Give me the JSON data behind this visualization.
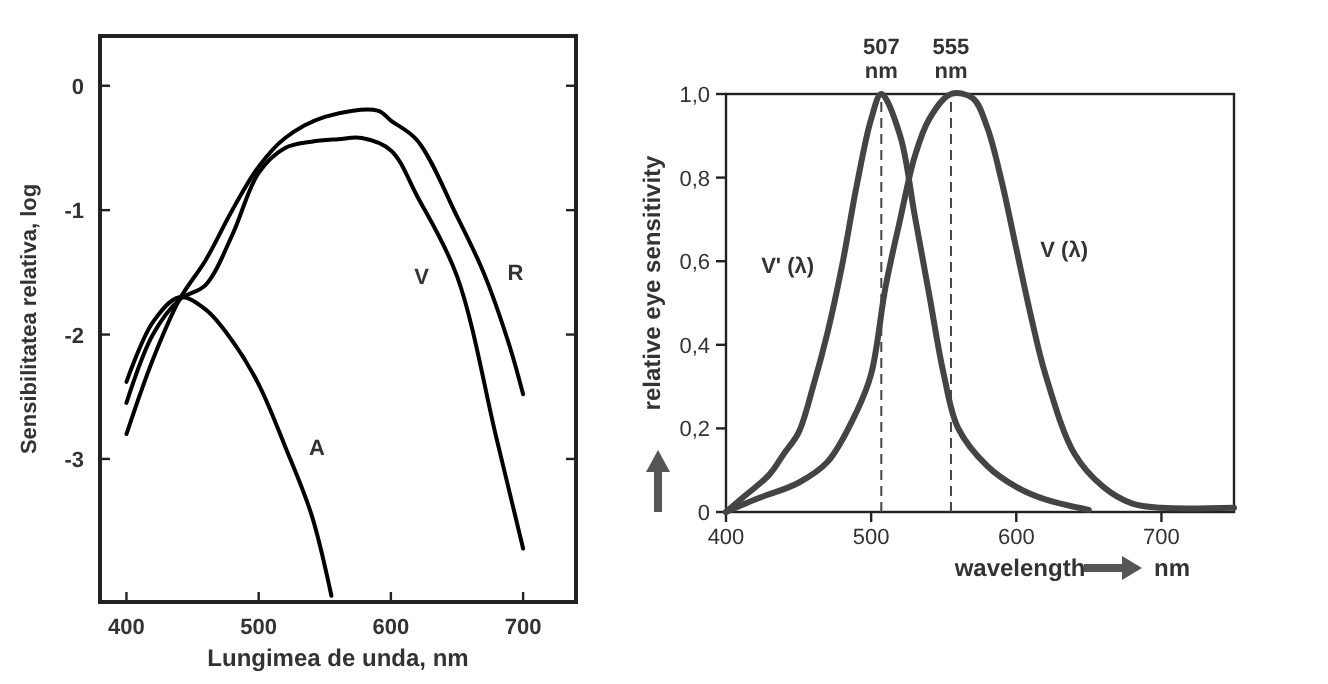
{
  "chart_data": [
    {
      "type": "line",
      "xlabel": "Lungimea de unda, nm",
      "ylabel": "Sensibilitatea relativa, log",
      "xlim": [
        380,
        740
      ],
      "ylim": [
        -4.15,
        0.4
      ],
      "xticks": [
        400,
        500,
        600,
        700
      ],
      "yticks": [
        0,
        -1,
        -2,
        -3
      ],
      "grid": false,
      "legend": false,
      "marker": "none",
      "line_style": "solid",
      "series": [
        {
          "name": "R",
          "color": "#000000",
          "x": [
            400,
            420,
            440,
            460,
            480,
            500,
            520,
            550,
            590,
            600,
            620,
            650,
            670,
            690,
            700
          ],
          "values": [
            -2.8,
            -2.2,
            -1.72,
            -1.4,
            -1.0,
            -0.65,
            -0.42,
            -0.25,
            -0.2,
            -0.28,
            -0.44,
            -1.05,
            -1.5,
            -2.1,
            -2.48
          ]
        },
        {
          "name": "V",
          "color": "#000000",
          "x": [
            400,
            420,
            440,
            460,
            480,
            500,
            520,
            540,
            560,
            578,
            600,
            620,
            650,
            680,
            700
          ],
          "values": [
            -2.55,
            -2.0,
            -1.72,
            -1.6,
            -1.2,
            -0.7,
            -0.5,
            -0.45,
            -0.43,
            -0.42,
            -0.52,
            -0.89,
            -1.53,
            -2.84,
            -3.72
          ]
        },
        {
          "name": "A",
          "color": "#000000",
          "x": [
            400,
            420,
            440,
            460,
            480,
            500,
            520,
            540,
            555
          ],
          "values": [
            -2.38,
            -1.9,
            -1.7,
            -1.8,
            -2.05,
            -2.4,
            -2.9,
            -3.45,
            -4.1
          ]
        }
      ]
    },
    {
      "type": "line",
      "xlabel": "wavelength nm",
      "ylabel": "relative eye sensitivity",
      "xlim": [
        400,
        750
      ],
      "ylim": [
        0,
        1
      ],
      "xticks": [
        400,
        500,
        600,
        700
      ],
      "yticks": [
        0,
        {
          "value": 0.2,
          "label": "0,2"
        },
        {
          "value": 0.4,
          "label": "0,4"
        },
        {
          "value": 0.6,
          "label": "0,6"
        },
        {
          "value": 0.8,
          "label": "0,8"
        },
        {
          "value": 1,
          "label": "1,0"
        }
      ],
      "grid": false,
      "legend": false,
      "marker": "none",
      "line_style": "solid",
      "ref_lines": [
        {
          "axis": "x",
          "value": 507,
          "label": "507 nm",
          "line_style": "dashed"
        },
        {
          "axis": "x",
          "value": 555,
          "label": "555 nm",
          "line_style": "dashed"
        }
      ],
      "series": [
        {
          "name": "V' (λ)",
          "color": "#444444",
          "x": [
            400,
            410,
            430,
            440,
            450,
            460,
            470,
            480,
            490,
            500,
            507,
            520,
            530,
            540,
            550,
            560,
            580,
            600,
            620,
            650
          ],
          "values": [
            0,
            0.03,
            0.09,
            0.14,
            0.19,
            0.3,
            0.43,
            0.59,
            0.78,
            0.94,
            1,
            0.9,
            0.71,
            0.52,
            0.33,
            0.2,
            0.11,
            0.06,
            0.03,
            0.005
          ]
        },
        {
          "name": "V (λ)",
          "color": "#444444",
          "x": [
            400,
            420,
            450,
            470,
            490,
            500,
            510,
            520,
            530,
            540,
            555,
            570,
            580,
            590,
            600,
            610,
            620,
            640,
            660,
            680,
            700,
            750
          ],
          "values": [
            0,
            0.03,
            0.07,
            0.12,
            0.24,
            0.33,
            0.54,
            0.7,
            0.85,
            0.94,
            1,
            0.99,
            0.92,
            0.79,
            0.63,
            0.47,
            0.33,
            0.14,
            0.06,
            0.02,
            0.01,
            0.01
          ]
        }
      ]
    }
  ]
}
